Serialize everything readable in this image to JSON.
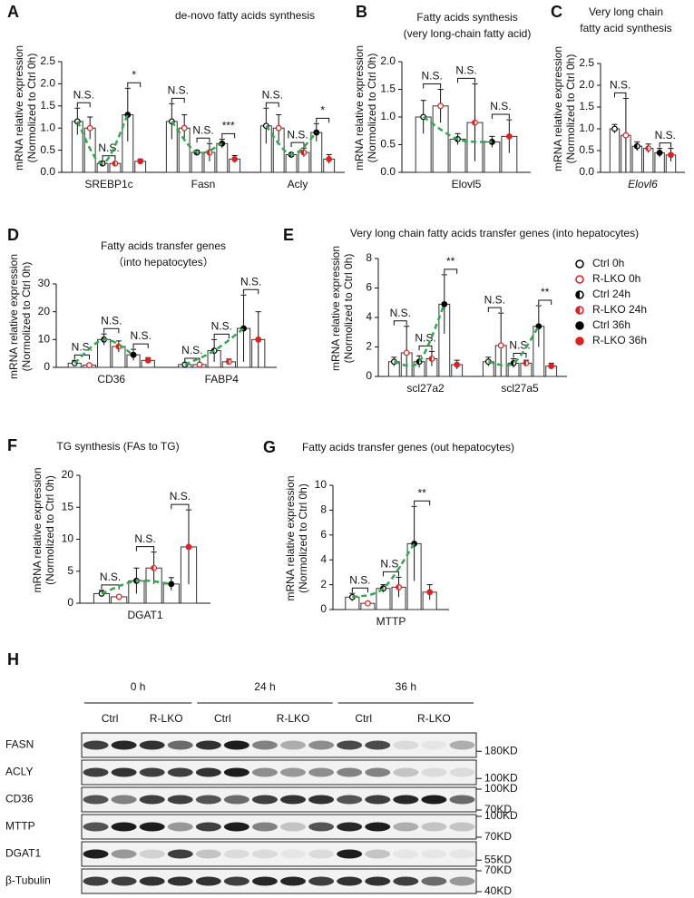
{
  "chart_data": [
    {
      "panel": "A",
      "type": "bar",
      "title": [
        "de-novo fatty acids synthesis"
      ],
      "ylabel": [
        "mRNA relative expression",
        "(Normolized to Ctrl 0h)"
      ],
      "categories": [
        "SREBP1c",
        "Fasn",
        "Acly"
      ],
      "series": [
        {
          "name": "Ctrl 0h",
          "color": "#000000",
          "marker": "open",
          "values": [
            1.15,
            1.15,
            1.05
          ],
          "errors": [
            0.3,
            0.4,
            0.4
          ]
        },
        {
          "name": "R-LKO 0h",
          "color": "#e02020",
          "marker": "open",
          "values": [
            1.0,
            1.0,
            1.0
          ],
          "errors": [
            0.25,
            0.3,
            0.3
          ]
        },
        {
          "name": "Ctrl 24h",
          "color": "#000000",
          "marker": "half",
          "values": [
            0.2,
            0.45,
            0.4
          ],
          "errors": [
            0.05,
            0.05,
            0.03
          ]
        },
        {
          "name": "R-LKO 24h",
          "color": "#e02020",
          "marker": "half",
          "values": [
            0.2,
            0.45,
            0.45
          ],
          "errors": [
            0.03,
            0.2,
            0.1
          ]
        },
        {
          "name": "Ctrl 36h",
          "color": "#000000",
          "marker": "filled",
          "values": [
            1.3,
            0.65,
            0.9
          ],
          "errors": [
            0.6,
            0.1,
            0.2
          ]
        },
        {
          "name": "R-LKO 36h",
          "color": "#e02020",
          "marker": "filled",
          "values": [
            0.25,
            0.3,
            0.3
          ],
          "errors": [
            0.05,
            0.08,
            0.1
          ]
        }
      ],
      "significance": [
        [
          "N.S.",
          "N.S.",
          "*"
        ],
        [
          "N.S.",
          "N.S.",
          "***"
        ],
        [
          "N.S.",
          "N.S.",
          "*"
        ]
      ],
      "ylim": [
        0,
        2.5
      ],
      "yticks": [
        {
          "value": 0,
          "label": "0.0"
        },
        {
          "value": 0.5,
          "label": "0.5"
        },
        {
          "value": 1,
          "label": "1.0"
        },
        {
          "value": 1.5,
          "label": "1.5"
        },
        {
          "value": 2,
          "label": "2.0"
        },
        {
          "value": 2.5,
          "label": "2.5"
        }
      ],
      "trend_color": "#2eaa4a"
    },
    {
      "panel": "B",
      "type": "bar",
      "title": [
        "Fatty acids synthesis",
        "(very long-chain fatty acid)"
      ],
      "ylabel": [
        "mRNA relative expression",
        "(Normolized to Ctrl 0h)"
      ],
      "categories": [
        "Elovl5"
      ],
      "series": [
        {
          "name": "Ctrl 0h",
          "color": "#000000",
          "marker": "open",
          "values": [
            1.0
          ],
          "errors": [
            0.3
          ]
        },
        {
          "name": "R-LKO 0h",
          "color": "#e02020",
          "marker": "open",
          "values": [
            1.2
          ],
          "errors": [
            0.3
          ]
        },
        {
          "name": "Ctrl 24h",
          "color": "#000000",
          "marker": "half",
          "values": [
            0.6
          ],
          "errors": [
            0.1
          ]
        },
        {
          "name": "R-LKO 24h",
          "color": "#e02020",
          "marker": "half",
          "values": [
            0.9
          ],
          "errors": [
            0.7
          ]
        },
        {
          "name": "Ctrl 36h",
          "color": "#000000",
          "marker": "filled",
          "values": [
            0.55
          ],
          "errors": [
            0.1
          ]
        },
        {
          "name": "R-LKO 36h",
          "color": "#e02020",
          "marker": "filled",
          "values": [
            0.65
          ],
          "errors": [
            0.3
          ]
        }
      ],
      "significance": [
        [
          "N.S.",
          "N.S.",
          "N.S."
        ]
      ],
      "ylim": [
        0,
        2
      ],
      "yticks": [
        {
          "value": 0,
          "label": "0.0"
        },
        {
          "value": 0.5,
          "label": "0.5"
        },
        {
          "value": 1,
          "label": "1.0"
        },
        {
          "value": 1.5,
          "label": "1.5"
        },
        {
          "value": 2,
          "label": "2.0"
        }
      ],
      "trend_color": "#2eaa4a"
    },
    {
      "panel": "C",
      "type": "bar",
      "title": [
        "Very long chain",
        "fatty acid synthesis"
      ],
      "ylabel": [
        "mRNA relative expression",
        "(Normolized to Ctrl 0h)"
      ],
      "categories": [
        "Elovl6"
      ],
      "italic_categories": true,
      "series": [
        {
          "name": "Ctrl 0h",
          "color": "#000000",
          "marker": "open",
          "values": [
            1.0
          ],
          "errors": [
            0.1
          ]
        },
        {
          "name": "R-LKO 0h",
          "color": "#e02020",
          "marker": "open",
          "values": [
            0.85
          ],
          "errors": [
            0.85
          ]
        },
        {
          "name": "Ctrl 24h",
          "color": "#000000",
          "marker": "half",
          "values": [
            0.6
          ],
          "errors": [
            0.1
          ]
        },
        {
          "name": "R-LKO 24h",
          "color": "#e02020",
          "marker": "half",
          "values": [
            0.55
          ],
          "errors": [
            0.1
          ]
        },
        {
          "name": "Ctrl 36h",
          "color": "#000000",
          "marker": "filled",
          "values": [
            0.45
          ],
          "errors": [
            0.1
          ]
        },
        {
          "name": "R-LKO 36h",
          "color": "#e02020",
          "marker": "filled",
          "values": [
            0.4
          ],
          "errors": [
            0.15
          ]
        }
      ],
      "significance": [
        [
          "N.S.",
          null,
          "N.S."
        ]
      ],
      "ylim": [
        0,
        2.5
      ],
      "yticks": [
        {
          "value": 0,
          "label": "0.0"
        },
        {
          "value": 0.5,
          "label": "0.5"
        },
        {
          "value": 1,
          "label": "1.0"
        },
        {
          "value": 1.5,
          "label": "1.5"
        },
        {
          "value": 2,
          "label": "2.0"
        },
        {
          "value": 2.5,
          "label": "2.5"
        }
      ]
    },
    {
      "panel": "D",
      "type": "bar",
      "title": [
        "Fatty acids transfer genes",
        "（into hepatocytes）"
      ],
      "ylabel": [
        "mRNA relative expression",
        "(Normolized to Ctrl 0h)"
      ],
      "categories": [
        "CD36",
        "FABP4"
      ],
      "series": [
        {
          "name": "Ctrl 0h",
          "color": "#000000",
          "marker": "open",
          "values": [
            1.5,
            1
          ],
          "errors": [
            1,
            0.3
          ]
        },
        {
          "name": "R-LKO 0h",
          "color": "#e02020",
          "marker": "open",
          "values": [
            0.8,
            1
          ],
          "errors": [
            0.5,
            0.3
          ]
        },
        {
          "name": "Ctrl 24h",
          "color": "#000000",
          "marker": "half",
          "values": [
            10,
            6
          ],
          "errors": [
            2,
            4
          ]
        },
        {
          "name": "R-LKO 24h",
          "color": "#e02020",
          "marker": "half",
          "values": [
            7.5,
            2
          ],
          "errors": [
            2,
            1
          ]
        },
        {
          "name": "Ctrl 36h",
          "color": "#000000",
          "marker": "filled",
          "values": [
            4.5,
            14
          ],
          "errors": [
            2,
            12
          ]
        },
        {
          "name": "R-LKO 36h",
          "color": "#e02020",
          "marker": "filled",
          "values": [
            2.5,
            10
          ],
          "errors": [
            1,
            10
          ]
        }
      ],
      "significance": [
        [
          "N.S.",
          "N.S.",
          "N.S."
        ],
        [
          "N.S.",
          "N.S.",
          "N.S."
        ]
      ],
      "ylim": [
        0,
        30
      ],
      "yticks": [
        0,
        10,
        20,
        30
      ],
      "trend_color": "#2eaa4a"
    },
    {
      "panel": "E",
      "type": "bar",
      "title": [
        "Very long chain fatty acids transfer genes (into hepatocytes)"
      ],
      "ylabel": [
        "mRNA relative expression",
        "(Normolized to Ctrl 0h)"
      ],
      "categories": [
        "scl27a2",
        "scl27a5"
      ],
      "legend": "right",
      "series": [
        {
          "name": "Ctrl 0h",
          "color": "#000000",
          "marker": "open",
          "values": [
            1.0,
            1.0
          ],
          "errors": [
            0.3,
            0.3
          ]
        },
        {
          "name": "R-LKO 0h",
          "color": "#e02020",
          "marker": "open",
          "values": [
            1.6,
            2.1
          ],
          "errors": [
            1.8,
            2.2
          ]
        },
        {
          "name": "Ctrl 24h",
          "color": "#000000",
          "marker": "half",
          "values": [
            1.0,
            0.9
          ],
          "errors": [
            0.4,
            0.3
          ]
        },
        {
          "name": "R-LKO 24h",
          "color": "#e02020",
          "marker": "half",
          "values": [
            1.2,
            0.9
          ],
          "errors": [
            0.5,
            0.2
          ]
        },
        {
          "name": "Ctrl 36h",
          "color": "#000000",
          "marker": "filled",
          "values": [
            4.9,
            3.4
          ],
          "errors": [
            2,
            1.4
          ]
        },
        {
          "name": "R-LKO 36h",
          "color": "#e02020",
          "marker": "filled",
          "values": [
            0.8,
            0.7
          ],
          "errors": [
            0.3,
            0.2
          ]
        }
      ],
      "significance": [
        [
          "N.S.",
          "N.S.",
          "**"
        ],
        [
          "N.S.",
          "N.S.",
          "**"
        ]
      ],
      "ylim": [
        0,
        8
      ],
      "yticks": [
        0,
        2,
        4,
        6,
        8
      ],
      "trend_color": "#2eaa4a"
    },
    {
      "panel": "F",
      "type": "bar",
      "title": [
        "TG synthesis (FAs to TG)"
      ],
      "ylabel": [
        "mRNA relative expression",
        "(Normolized to Ctrl 0h)"
      ],
      "categories": [
        "DGAT1"
      ],
      "series": [
        {
          "name": "Ctrl 0h",
          "color": "#000000",
          "marker": "open",
          "values": [
            1.5
          ],
          "errors": [
            0.5
          ]
        },
        {
          "name": "R-LKO 0h",
          "color": "#e02020",
          "marker": "open",
          "values": [
            1
          ],
          "errors": [
            0.2
          ]
        },
        {
          "name": "Ctrl 24h",
          "color": "#000000",
          "marker": "half",
          "values": [
            3.5
          ],
          "errors": [
            2
          ]
        },
        {
          "name": "R-LKO 24h",
          "color": "#e02020",
          "marker": "half",
          "values": [
            5.5
          ],
          "errors": [
            2.5
          ]
        },
        {
          "name": "Ctrl 36h",
          "color": "#000000",
          "marker": "filled",
          "values": [
            3
          ],
          "errors": [
            1
          ]
        },
        {
          "name": "R-LKO 36h",
          "color": "#e02020",
          "marker": "filled",
          "values": [
            8.8
          ],
          "errors": [
            5.8
          ]
        }
      ],
      "significance": [
        [
          "N.S.",
          "N.S.",
          "N.S."
        ]
      ],
      "ylim": [
        0,
        20
      ],
      "yticks": [
        0,
        5,
        10,
        15,
        20
      ],
      "trend_color": "#2eaa4a"
    },
    {
      "panel": "G",
      "type": "bar",
      "title": [
        "Fatty acids transfer genes (out hepatocytes)"
      ],
      "ylabel": [
        "mRNA relative expression",
        "(Normolized to Ctrl 0h)"
      ],
      "categories": [
        "MTTP"
      ],
      "series": [
        {
          "name": "Ctrl 0h",
          "color": "#000000",
          "marker": "open",
          "values": [
            1.0
          ],
          "errors": [
            0.3
          ]
        },
        {
          "name": "R-LKO 0h",
          "color": "#e02020",
          "marker": "open",
          "values": [
            0.5
          ],
          "errors": [
            0.1
          ]
        },
        {
          "name": "Ctrl 24h",
          "color": "#000000",
          "marker": "half",
          "values": [
            1.7
          ],
          "errors": [
            0.3
          ]
        },
        {
          "name": "R-LKO 24h",
          "color": "#e02020",
          "marker": "half",
          "values": [
            1.8
          ],
          "errors": [
            0.8
          ]
        },
        {
          "name": "Ctrl 36h",
          "color": "#000000",
          "marker": "filled",
          "values": [
            5.3
          ],
          "errors": [
            3
          ]
        },
        {
          "name": "R-LKO 36h",
          "color": "#e02020",
          "marker": "filled",
          "values": [
            1.4
          ],
          "errors": [
            0.6
          ]
        }
      ],
      "significance": [
        [
          "N.S.",
          "N.S.",
          "**"
        ]
      ],
      "ylim": [
        0,
        10
      ],
      "yticks": [
        0,
        2,
        4,
        6,
        8,
        10
      ],
      "trend_color": "#2eaa4a"
    }
  ],
  "western_blot": {
    "panel": "H",
    "timepoints": [
      "0 h",
      "24 h",
      "36 h"
    ],
    "groups": [
      "Ctrl",
      "R-LKO",
      "Ctrl",
      "R-LKO",
      "Ctrl",
      "R-LKO"
    ],
    "rows": [
      {
        "label": "FASN",
        "markers": [
          "180KD"
        ]
      },
      {
        "label": "ACLY",
        "markers": [
          "100KD"
        ]
      },
      {
        "label": "CD36",
        "markers": [
          "100KD",
          "70KD"
        ]
      },
      {
        "label": "MTTP",
        "markers": [
          "100KD",
          "70KD"
        ]
      },
      {
        "label": "DGAT1",
        "markers": [
          "55KD"
        ]
      },
      {
        "label": "β-Tubulin",
        "markers": [
          "70KD",
          "40KD"
        ]
      }
    ]
  }
}
